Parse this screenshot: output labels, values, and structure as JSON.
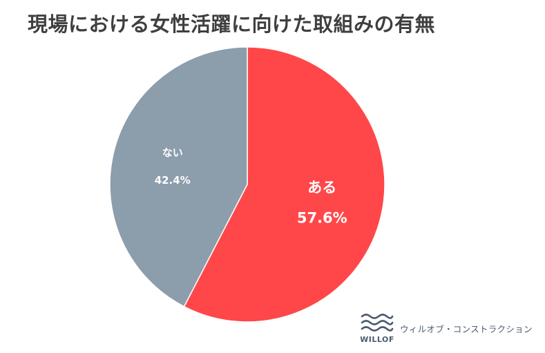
{
  "colors": {
    "background": "#ffffff",
    "title": "#3f3f3f",
    "slice_yes": "#ff4749",
    "slice_no": "#8c9dac",
    "label_text": "#ffffff",
    "brand": "#4a5a6e"
  },
  "chart_data": {
    "type": "pie",
    "title": "現場における女性活躍に向けた取組みの有無",
    "start_angle_deg": 0,
    "direction": "clockwise",
    "unit": "%",
    "slices": [
      {
        "label": "ある",
        "value": 57.6,
        "display_value": "57.6%",
        "color": "#ff4749"
      },
      {
        "label": "ない",
        "value": 42.4,
        "display_value": "42.4%",
        "color": "#8c9dac"
      }
    ]
  },
  "brand": {
    "logo_icon": "wave-lines-icon",
    "logo_text": "WILLOF",
    "company_name": "ウィルオブ・コンストラクション"
  }
}
